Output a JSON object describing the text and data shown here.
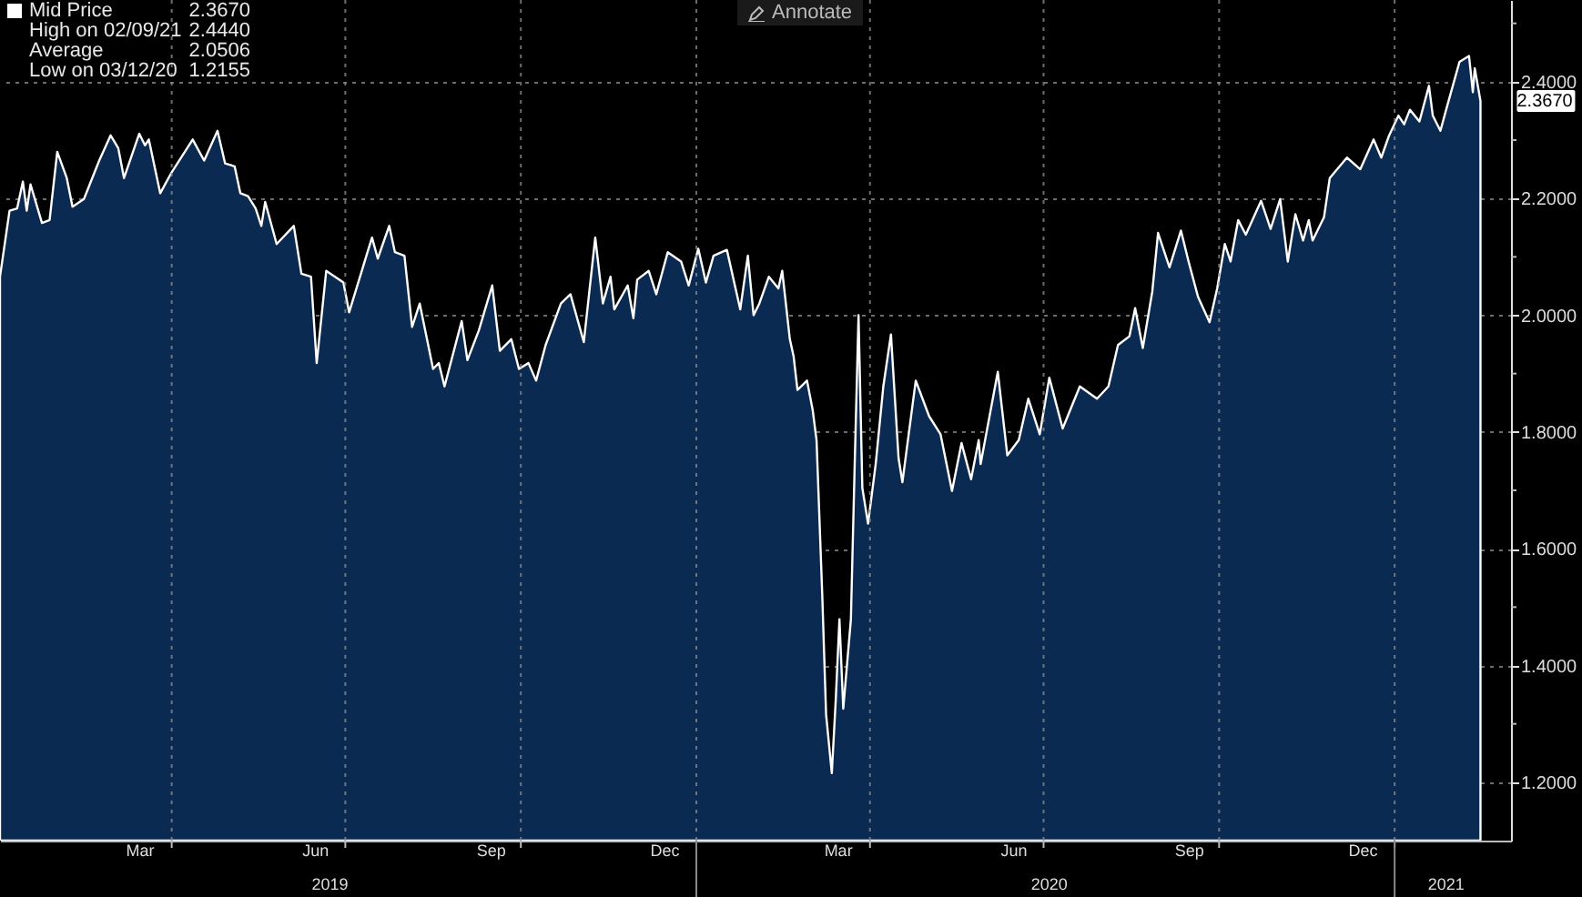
{
  "chart_data": {
    "type": "area",
    "legend": "top left",
    "grid": true,
    "x": [
      "2019-01-01",
      "2019-01-06",
      "2019-01-10",
      "2019-01-13",
      "2019-01-15",
      "2019-01-17",
      "2019-01-23",
      "2019-01-27",
      "2019-01-31",
      "2019-02-05",
      "2019-02-08",
      "2019-02-14",
      "2019-02-22",
      "2019-02-28",
      "2019-03-04",
      "2019-03-07",
      "2019-03-15",
      "2019-03-18",
      "2019-03-20",
      "2019-03-26",
      "2019-04-01",
      "2019-04-12",
      "2019-04-18",
      "2019-04-25",
      "2019-04-29",
      "2019-05-04",
      "2019-05-07",
      "2019-05-11",
      "2019-05-15",
      "2019-05-18",
      "2019-05-20",
      "2019-05-26",
      "2019-06-04",
      "2019-06-08",
      "2019-06-13",
      "2019-06-16",
      "2019-06-21",
      "2019-06-30",
      "2019-07-03",
      "2019-07-13",
      "2019-07-15",
      "2019-07-18",
      "2019-07-24",
      "2019-07-27",
      "2019-08-01",
      "2019-08-05",
      "2019-08-09",
      "2019-08-16",
      "2019-08-19",
      "2019-08-22",
      "2019-08-31",
      "2019-09-03",
      "2019-09-09",
      "2019-09-16",
      "2019-09-20",
      "2019-09-26",
      "2019-09-30",
      "2019-10-05",
      "2019-10-09",
      "2019-10-14",
      "2019-10-22",
      "2019-10-27",
      "2019-11-03",
      "2019-11-09",
      "2019-11-13",
      "2019-11-17",
      "2019-11-19",
      "2019-11-26",
      "2019-11-29",
      "2019-12-01",
      "2019-12-07",
      "2019-12-11",
      "2019-12-17",
      "2019-12-24",
      "2019-12-28",
      "2020-01-02",
      "2020-01-06",
      "2020-01-10",
      "2020-01-17",
      "2020-01-24",
      "2020-01-28",
      "2020-01-31",
      "2020-02-03",
      "2020-02-08",
      "2020-02-13",
      "2020-02-15",
      "2020-02-19",
      "2020-02-21",
      "2020-02-23",
      "2020-02-28",
      "2020-03-02",
      "2020-03-04",
      "2020-03-07",
      "2020-03-09",
      "2020-03-12",
      "2020-03-14",
      "2020-03-16",
      "2020-03-18",
      "2020-03-22",
      "2020-03-24",
      "2020-03-26",
      "2020-03-28",
      "2020-03-31",
      "2020-04-04",
      "2020-04-08",
      "2020-04-12",
      "2020-04-16",
      "2020-04-18",
      "2020-04-25",
      "2020-05-02",
      "2020-05-08",
      "2020-05-14",
      "2020-05-19",
      "2020-05-24",
      "2020-05-28",
      "2020-05-29",
      "2020-06-07",
      "2020-06-12",
      "2020-06-18",
      "2020-06-23",
      "2020-06-29",
      "2020-07-04",
      "2020-07-11",
      "2020-07-20",
      "2020-07-29",
      "2020-08-04",
      "2020-08-09",
      "2020-08-15",
      "2020-08-18",
      "2020-08-22",
      "2020-08-27",
      "2020-08-30",
      "2020-09-05",
      "2020-09-11",
      "2020-09-15",
      "2020-09-20",
      "2020-09-26",
      "2020-09-30",
      "2020-10-04",
      "2020-10-07",
      "2020-10-11",
      "2020-10-15",
      "2020-10-23",
      "2020-10-28",
      "2020-11-02",
      "2020-11-06",
      "2020-11-10",
      "2020-11-14",
      "2020-11-17",
      "2020-11-19",
      "2020-11-25",
      "2020-11-28",
      "2020-12-07",
      "2020-12-14",
      "2020-12-21",
      "2020-12-25",
      "2020-12-29",
      "2021-01-03",
      "2021-01-06",
      "2021-01-09",
      "2021-01-14",
      "2021-01-19",
      "2021-01-21",
      "2021-01-25",
      "2021-01-28",
      "2021-02-04",
      "2021-02-09",
      "2021-02-11",
      "2021-02-12",
      "2021-02-15"
    ],
    "series": [
      {
        "name": "Mid Price",
        "color": "#ffffff",
        "values": [
          2.066,
          2.179,
          2.183,
          2.229,
          2.179,
          2.224,
          2.158,
          2.163,
          2.28,
          2.235,
          2.186,
          2.199,
          2.265,
          2.308,
          2.286,
          2.235,
          2.311,
          2.291,
          2.301,
          2.209,
          2.245,
          2.301,
          2.265,
          2.316,
          2.26,
          2.255,
          2.209,
          2.204,
          2.183,
          2.153,
          2.194,
          2.122,
          2.153,
          2.071,
          2.066,
          1.918,
          2.076,
          2.056,
          2.005,
          2.112,
          2.133,
          2.097,
          2.153,
          2.108,
          2.102,
          1.98,
          2.02,
          1.908,
          1.918,
          1.878,
          1.99,
          1.923,
          1.974,
          2.051,
          1.939,
          1.959,
          1.908,
          1.918,
          1.888,
          1.949,
          2.02,
          2.036,
          1.954,
          2.133,
          2.02,
          2.066,
          2.01,
          2.051,
          1.995,
          2.061,
          2.076,
          2.036,
          2.108,
          2.092,
          2.051,
          2.114,
          2.056,
          2.102,
          2.112,
          2.01,
          2.102,
          2.0,
          2.02,
          2.066,
          2.046,
          2.076,
          1.959,
          1.929,
          1.872,
          1.888,
          1.837,
          1.786,
          1.52,
          1.316,
          1.2155,
          1.337,
          1.479,
          1.326,
          1.479,
          1.745,
          2.0,
          1.704,
          1.643,
          1.745,
          1.878,
          1.967,
          1.755,
          1.714,
          1.888,
          1.827,
          1.796,
          1.699,
          1.781,
          1.719,
          1.786,
          1.745,
          1.903,
          1.76,
          1.786,
          1.857,
          1.796,
          1.893,
          1.806,
          1.878,
          1.857,
          1.878,
          1.949,
          1.964,
          2.012,
          1.944,
          2.041,
          2.141,
          2.082,
          2.145,
          2.092,
          2.031,
          1.988,
          2.046,
          2.122,
          2.092,
          2.163,
          2.138,
          2.196,
          2.148,
          2.199,
          2.092,
          2.173,
          2.128,
          2.163,
          2.128,
          2.168,
          2.235,
          2.27,
          2.25,
          2.301,
          2.27,
          2.307,
          2.342,
          2.327,
          2.352,
          2.332,
          2.393,
          2.342,
          2.316,
          2.352,
          2.434,
          2.444,
          2.382,
          2.423,
          2.367
        ]
      }
    ],
    "xlim": [
      "2019-01-01",
      "2021-03-03"
    ],
    "xticks": [
      {
        "value": "2019-03-15",
        "label": "Mar"
      },
      {
        "value": "2019-06-15",
        "label": "Jun"
      },
      {
        "value": "2019-09-15",
        "label": "Sep"
      },
      {
        "value": "2019-12-15",
        "label": "Dec"
      },
      {
        "value": "2020-03-15",
        "label": "Mar"
      },
      {
        "value": "2020-06-15",
        "label": "Jun"
      },
      {
        "value": "2020-09-15",
        "label": "Sep"
      },
      {
        "value": "2020-12-15",
        "label": "Dec"
      },
      {
        "value": "2019-04-01",
        "label": null
      },
      {
        "value": "2019-07-01",
        "label": null
      },
      {
        "value": "2019-10-01",
        "label": null
      },
      {
        "value": "2020-01-01",
        "label": null
      },
      {
        "value": "2020-04-01",
        "label": null
      },
      {
        "value": "2020-07-01",
        "label": null
      },
      {
        "value": "2020-10-01",
        "label": null
      },
      {
        "value": "2021-01-01",
        "label": null
      }
    ],
    "x2lim": [
      "2019-01-01",
      "2021-03-03"
    ],
    "x2ticks": [
      {
        "value": "2019-06-23",
        "label": "2019"
      },
      {
        "value": "2020-07-04",
        "label": "2020"
      },
      {
        "value": "2021-01-28",
        "label": "2021"
      },
      {
        "value": "2020-01-01",
        "label": null
      },
      {
        "value": "2021-01-01",
        "label": null
      }
    ],
    "ylim": [
      1.1,
      2.54
    ],
    "yticks": [
      {
        "value": 1.2,
        "label": "1.2000"
      },
      {
        "value": 1.4,
        "label": "1.4000"
      },
      {
        "value": 1.6,
        "label": "1.6000"
      },
      {
        "value": 1.8,
        "label": "1.8000"
      },
      {
        "value": 2.0,
        "label": "2.0000"
      },
      {
        "value": 2.2,
        "label": "2.2000"
      },
      {
        "value": 2.4,
        "label": "2.4000"
      },
      {
        "value": 1.3,
        "label": null
      },
      {
        "value": 1.5,
        "label": null
      },
      {
        "value": 1.7,
        "label": null
      },
      {
        "value": 1.9,
        "label": null
      },
      {
        "value": 2.1,
        "label": null
      },
      {
        "value": 2.3,
        "label": null
      },
      {
        "value": 2.5,
        "label": null
      }
    ],
    "annotations": [
      "2.3670",
      "High on 02/09/21",
      "2.4440",
      "Average",
      "2.0506",
      "Low on 03/12/20",
      "1.2155",
      "Annotate",
      {
        "text": "2.3670",
        "x": "2021-02-15",
        "y": 2.367
      }
    ]
  }
}
